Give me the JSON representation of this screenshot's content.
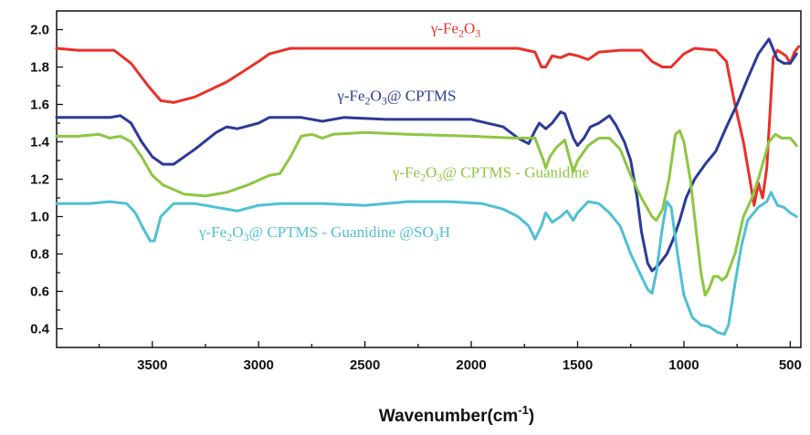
{
  "chart_data": {
    "type": "line",
    "title": "",
    "xlabel": "Wavenumber(cm",
    "xlabel_sup": "-1",
    "xlabel_end": ")",
    "ylabel": "",
    "xlim": [
      3950,
      450
    ],
    "ylim": [
      0.3,
      2.1
    ],
    "x_reversed": true,
    "grid": false,
    "x_ticks": [
      3500,
      3000,
      2500,
      2000,
      1500,
      1000,
      500
    ],
    "x_tick_labels": [
      "3500",
      "3000",
      "2500",
      "2000",
      "1500",
      "1000",
      "500"
    ],
    "y_ticks": [
      0.4,
      0.6,
      0.8,
      1.0,
      1.2,
      1.4,
      1.6,
      1.8,
      2.0
    ],
    "y_tick_labels": [
      "0.4",
      "0.6",
      "0.8",
      "1.0",
      "1.2",
      "1.4",
      "1.6",
      "1.8",
      "2.0"
    ],
    "series": [
      {
        "name": "γ-Fe2O3",
        "label_parts": [
          [
            "t",
            "γ-Fe"
          ],
          [
            "s",
            "2"
          ],
          [
            "t",
            "O"
          ],
          [
            "s",
            "3"
          ]
        ],
        "label_pos": [
          2190,
          1.98
        ],
        "color": "#e8312a",
        "points": [
          [
            3950,
            1.9
          ],
          [
            3850,
            1.89
          ],
          [
            3750,
            1.89
          ],
          [
            3680,
            1.89
          ],
          [
            3600,
            1.82
          ],
          [
            3520,
            1.7
          ],
          [
            3460,
            1.62
          ],
          [
            3400,
            1.61
          ],
          [
            3300,
            1.64
          ],
          [
            3150,
            1.72
          ],
          [
            3000,
            1.83
          ],
          [
            2950,
            1.87
          ],
          [
            2850,
            1.9
          ],
          [
            2700,
            1.9
          ],
          [
            2400,
            1.9
          ],
          [
            2000,
            1.9
          ],
          [
            1780,
            1.9
          ],
          [
            1700,
            1.88
          ],
          [
            1670,
            1.8
          ],
          [
            1650,
            1.8
          ],
          [
            1620,
            1.86
          ],
          [
            1580,
            1.85
          ],
          [
            1540,
            1.87
          ],
          [
            1500,
            1.86
          ],
          [
            1450,
            1.84
          ],
          [
            1400,
            1.88
          ],
          [
            1300,
            1.89
          ],
          [
            1200,
            1.89
          ],
          [
            1150,
            1.83
          ],
          [
            1100,
            1.8
          ],
          [
            1060,
            1.8
          ],
          [
            1000,
            1.87
          ],
          [
            950,
            1.9
          ],
          [
            850,
            1.89
          ],
          [
            800,
            1.83
          ],
          [
            760,
            1.6
          ],
          [
            720,
            1.4
          ],
          [
            690,
            1.2
          ],
          [
            670,
            1.06
          ],
          [
            650,
            1.18
          ],
          [
            630,
            1.1
          ],
          [
            610,
            1.26
          ],
          [
            580,
            1.85
          ],
          [
            560,
            1.89
          ],
          [
            520,
            1.86
          ],
          [
            500,
            1.82
          ],
          [
            480,
            1.88
          ],
          [
            460,
            1.91
          ]
        ]
      },
      {
        "name": "γ-Fe2O3@ CPTMS",
        "label_parts": [
          [
            "t",
            "γ-Fe"
          ],
          [
            "s",
            "2"
          ],
          [
            "t",
            "O"
          ],
          [
            "s",
            "3"
          ],
          [
            "t",
            "@ CPTMS"
          ]
        ],
        "label_pos": [
          2630,
          1.62
        ],
        "color": "#2b3a97",
        "points": [
          [
            3950,
            1.53
          ],
          [
            3800,
            1.53
          ],
          [
            3700,
            1.53
          ],
          [
            3650,
            1.54
          ],
          [
            3600,
            1.5
          ],
          [
            3550,
            1.4
          ],
          [
            3500,
            1.32
          ],
          [
            3450,
            1.28
          ],
          [
            3400,
            1.28
          ],
          [
            3300,
            1.36
          ],
          [
            3200,
            1.45
          ],
          [
            3150,
            1.48
          ],
          [
            3100,
            1.47
          ],
          [
            3000,
            1.5
          ],
          [
            2950,
            1.53
          ],
          [
            2800,
            1.53
          ],
          [
            2700,
            1.51
          ],
          [
            2600,
            1.53
          ],
          [
            2400,
            1.52
          ],
          [
            2200,
            1.52
          ],
          [
            2000,
            1.52
          ],
          [
            1850,
            1.48
          ],
          [
            1780,
            1.42
          ],
          [
            1730,
            1.39
          ],
          [
            1700,
            1.46
          ],
          [
            1680,
            1.5
          ],
          [
            1650,
            1.47
          ],
          [
            1620,
            1.5
          ],
          [
            1580,
            1.56
          ],
          [
            1560,
            1.55
          ],
          [
            1520,
            1.42
          ],
          [
            1500,
            1.38
          ],
          [
            1470,
            1.42
          ],
          [
            1440,
            1.48
          ],
          [
            1400,
            1.5
          ],
          [
            1350,
            1.54
          ],
          [
            1320,
            1.49
          ],
          [
            1280,
            1.4
          ],
          [
            1250,
            1.3
          ],
          [
            1220,
            1.1
          ],
          [
            1200,
            0.92
          ],
          [
            1170,
            0.75
          ],
          [
            1150,
            0.71
          ],
          [
            1120,
            0.74
          ],
          [
            1080,
            0.8
          ],
          [
            1050,
            0.88
          ],
          [
            1020,
            0.98
          ],
          [
            990,
            1.1
          ],
          [
            950,
            1.2
          ],
          [
            900,
            1.28
          ],
          [
            850,
            1.35
          ],
          [
            800,
            1.48
          ],
          [
            750,
            1.6
          ],
          [
            700,
            1.74
          ],
          [
            650,
            1.87
          ],
          [
            600,
            1.95
          ],
          [
            560,
            1.84
          ],
          [
            530,
            1.82
          ],
          [
            500,
            1.82
          ],
          [
            470,
            1.87
          ]
        ]
      },
      {
        "name": "γ-Fe2O3@ CPTMS - Guanidine",
        "label_parts": [
          [
            "t",
            "γ-Fe"
          ],
          [
            "s",
            "2"
          ],
          [
            "t",
            "O"
          ],
          [
            "s",
            "3"
          ],
          [
            "t",
            "@ CPTMS - Guanidine"
          ]
        ],
        "label_pos": [
          2370,
          1.21
        ],
        "color": "#8dc641",
        "points": [
          [
            3950,
            1.43
          ],
          [
            3850,
            1.43
          ],
          [
            3750,
            1.44
          ],
          [
            3700,
            1.42
          ],
          [
            3650,
            1.43
          ],
          [
            3600,
            1.4
          ],
          [
            3550,
            1.32
          ],
          [
            3500,
            1.22
          ],
          [
            3450,
            1.17
          ],
          [
            3350,
            1.12
          ],
          [
            3250,
            1.11
          ],
          [
            3150,
            1.13
          ],
          [
            3050,
            1.17
          ],
          [
            2950,
            1.22
          ],
          [
            2900,
            1.23
          ],
          [
            2850,
            1.32
          ],
          [
            2800,
            1.43
          ],
          [
            2750,
            1.44
          ],
          [
            2700,
            1.42
          ],
          [
            2650,
            1.44
          ],
          [
            2500,
            1.45
          ],
          [
            2300,
            1.44
          ],
          [
            2000,
            1.43
          ],
          [
            1800,
            1.42
          ],
          [
            1700,
            1.42
          ],
          [
            1660,
            1.3
          ],
          [
            1650,
            1.26
          ],
          [
            1630,
            1.32
          ],
          [
            1600,
            1.37
          ],
          [
            1560,
            1.41
          ],
          [
            1540,
            1.32
          ],
          [
            1520,
            1.24
          ],
          [
            1500,
            1.3
          ],
          [
            1450,
            1.38
          ],
          [
            1400,
            1.42
          ],
          [
            1350,
            1.42
          ],
          [
            1300,
            1.36
          ],
          [
            1250,
            1.22
          ],
          [
            1200,
            1.1
          ],
          [
            1150,
            1.0
          ],
          [
            1130,
            0.98
          ],
          [
            1100,
            1.04
          ],
          [
            1070,
            1.2
          ],
          [
            1040,
            1.44
          ],
          [
            1020,
            1.46
          ],
          [
            1000,
            1.4
          ],
          [
            970,
            1.2
          ],
          [
            940,
            0.9
          ],
          [
            920,
            0.7
          ],
          [
            900,
            0.58
          ],
          [
            880,
            0.62
          ],
          [
            860,
            0.68
          ],
          [
            840,
            0.68
          ],
          [
            820,
            0.66
          ],
          [
            800,
            0.68
          ],
          [
            760,
            0.8
          ],
          [
            720,
            1.0
          ],
          [
            680,
            1.1
          ],
          [
            650,
            1.2
          ],
          [
            620,
            1.32
          ],
          [
            600,
            1.4
          ],
          [
            570,
            1.44
          ],
          [
            540,
            1.42
          ],
          [
            500,
            1.42
          ],
          [
            470,
            1.38
          ]
        ]
      },
      {
        "name": "γ-Fe2O3@ CPTMS - Guanidine @SO3H",
        "label_parts": [
          [
            "t",
            "γ-Fe"
          ],
          [
            "s",
            "2"
          ],
          [
            "t",
            "O"
          ],
          [
            "s",
            "3"
          ],
          [
            "t",
            "@ CPTMS - Guanidine @SO"
          ],
          [
            "s",
            "3"
          ],
          [
            "t",
            "H"
          ]
        ],
        "label_pos": [
          3280,
          0.89
        ],
        "color": "#4fc0d3",
        "points": [
          [
            3950,
            1.07
          ],
          [
            3800,
            1.07
          ],
          [
            3700,
            1.08
          ],
          [
            3620,
            1.07
          ],
          [
            3580,
            1.02
          ],
          [
            3540,
            0.93
          ],
          [
            3510,
            0.87
          ],
          [
            3490,
            0.87
          ],
          [
            3460,
            1.0
          ],
          [
            3400,
            1.07
          ],
          [
            3300,
            1.07
          ],
          [
            3200,
            1.05
          ],
          [
            3100,
            1.03
          ],
          [
            3000,
            1.06
          ],
          [
            2900,
            1.07
          ],
          [
            2700,
            1.07
          ],
          [
            2500,
            1.06
          ],
          [
            2300,
            1.08
          ],
          [
            2100,
            1.08
          ],
          [
            1950,
            1.07
          ],
          [
            1850,
            1.04
          ],
          [
            1780,
            1.0
          ],
          [
            1730,
            0.95
          ],
          [
            1700,
            0.88
          ],
          [
            1670,
            0.95
          ],
          [
            1650,
            1.02
          ],
          [
            1620,
            0.97
          ],
          [
            1580,
            1.0
          ],
          [
            1550,
            1.03
          ],
          [
            1520,
            0.98
          ],
          [
            1500,
            1.02
          ],
          [
            1450,
            1.08
          ],
          [
            1400,
            1.07
          ],
          [
            1350,
            1.02
          ],
          [
            1300,
            0.95
          ],
          [
            1250,
            0.8
          ],
          [
            1200,
            0.68
          ],
          [
            1170,
            0.61
          ],
          [
            1150,
            0.59
          ],
          [
            1130,
            0.7
          ],
          [
            1100,
            0.95
          ],
          [
            1080,
            1.08
          ],
          [
            1060,
            1.05
          ],
          [
            1030,
            0.8
          ],
          [
            1000,
            0.58
          ],
          [
            960,
            0.46
          ],
          [
            920,
            0.42
          ],
          [
            880,
            0.41
          ],
          [
            840,
            0.38
          ],
          [
            810,
            0.37
          ],
          [
            790,
            0.42
          ],
          [
            760,
            0.64
          ],
          [
            730,
            0.84
          ],
          [
            700,
            0.98
          ],
          [
            650,
            1.05
          ],
          [
            610,
            1.08
          ],
          [
            590,
            1.13
          ],
          [
            560,
            1.06
          ],
          [
            530,
            1.05
          ],
          [
            500,
            1.02
          ],
          [
            470,
            1.0
          ]
        ]
      }
    ]
  }
}
